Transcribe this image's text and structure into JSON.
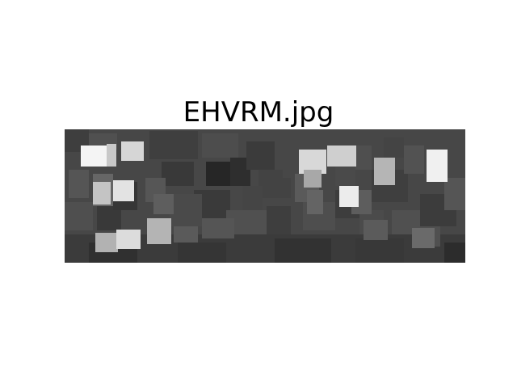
{
  "figure": {
    "title": "EHVRM.jpg"
  },
  "image": {
    "colormap": "gray",
    "base_color": "#444444"
  }
}
